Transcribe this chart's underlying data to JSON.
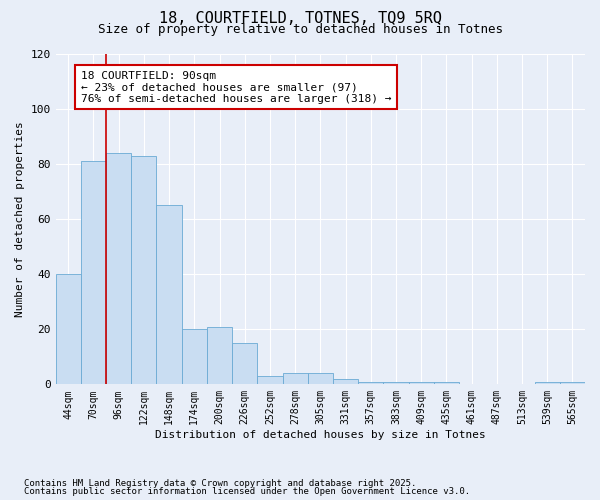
{
  "title1": "18, COURTFIELD, TOTNES, TQ9 5RQ",
  "title2": "Size of property relative to detached houses in Totnes",
  "xlabel": "Distribution of detached houses by size in Totnes",
  "ylabel": "Number of detached properties",
  "categories": [
    "44sqm",
    "70sqm",
    "96sqm",
    "122sqm",
    "148sqm",
    "174sqm",
    "200sqm",
    "226sqm",
    "252sqm",
    "278sqm",
    "305sqm",
    "331sqm",
    "357sqm",
    "383sqm",
    "409sqm",
    "435sqm",
    "461sqm",
    "487sqm",
    "513sqm",
    "539sqm",
    "565sqm"
  ],
  "values": [
    40,
    81,
    84,
    83,
    65,
    20,
    21,
    15,
    3,
    4,
    4,
    2,
    1,
    1,
    1,
    1,
    0,
    0,
    0,
    1,
    1
  ],
  "bar_color": "#c9ddf2",
  "bar_edge_color": "#6aaad4",
  "red_line_x": 1.5,
  "annotation_title": "18 COURTFIELD: 90sqm",
  "annotation_line1": "← 23% of detached houses are smaller (97)",
  "annotation_line2": "76% of semi-detached houses are larger (318) →",
  "annotation_box_color": "#ffffff",
  "annotation_box_edge": "#cc0000",
  "red_line_color": "#cc0000",
  "ylim": [
    0,
    120
  ],
  "yticks": [
    0,
    20,
    40,
    60,
    80,
    100,
    120
  ],
  "background_color": "#e8eef8",
  "plot_bg_color": "#e8eef8",
  "footer1": "Contains HM Land Registry data © Crown copyright and database right 2025.",
  "footer2": "Contains public sector information licensed under the Open Government Licence v3.0.",
  "grid_color": "#ffffff",
  "title_fontsize": 11,
  "subtitle_fontsize": 9,
  "annotation_fontsize": 8,
  "axis_label_fontsize": 8,
  "tick_fontsize": 7,
  "footer_fontsize": 6.5
}
